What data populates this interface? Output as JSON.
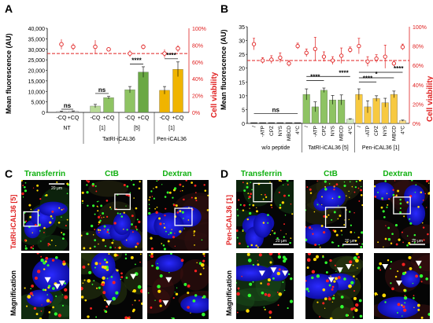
{
  "panel_labels": {
    "a": "A",
    "b": "B",
    "c": "C",
    "d": "D"
  },
  "colors": {
    "red": "#e02020",
    "green_light": "#b8db97",
    "green_mid": "#8ec363",
    "green_dark": "#6aa844",
    "orange": "#f0b400",
    "orange_light": "#f7c940",
    "gray": "#bfbfbf",
    "green_label": "#10b010",
    "red_label": "#e02020"
  },
  "chart_data": [
    {
      "id": "A",
      "type": "bar",
      "ylabel": "Mean fluorescence (AU)",
      "y2label": "Cell viability",
      "ylim": [
        0,
        40000
      ],
      "y2lim": [
        0,
        100
      ],
      "yticks": [
        "0",
        "5,000",
        "10,000",
        "15,000",
        "20,000",
        "25,000",
        "30,000",
        "35,000",
        "40,000"
      ],
      "y2ticks": [
        "0%",
        "20%",
        "40%",
        "60%",
        "80%",
        "100%"
      ],
      "categories": [
        "-CQ",
        "+CQ",
        "-CQ",
        "+CQ",
        "-CQ",
        "+CQ",
        "-CQ",
        "+CQ"
      ],
      "values": [
        400,
        500,
        3000,
        7000,
        10800,
        19200,
        10500,
        20500
      ],
      "errors": [
        200,
        200,
        800,
        600,
        1500,
        2500,
        1800,
        3500
      ],
      "viability": [
        81,
        78,
        78,
        75,
        70,
        78,
        70,
        76
      ],
      "viability_err": [
        6,
        4,
        8,
        0,
        4,
        3,
        5,
        4
      ],
      "reference_line": 70,
      "groups": [
        {
          "label": "NT",
          "conc": ""
        },
        {
          "label": "TatRI-iCAL36",
          "conc": "[1]"
        },
        {
          "label": "",
          "conc": "[5]"
        },
        {
          "label": "Pen-iCAL36",
          "conc": "[1]"
        }
      ],
      "annotations": [
        "ns",
        "ns",
        "****",
        "****"
      ]
    },
    {
      "id": "B",
      "type": "bar",
      "ylabel": "Mean fluorescence (AU)",
      "y2label": "Cell viability",
      "ylim": [
        0,
        35
      ],
      "y2lim": [
        0,
        100
      ],
      "yticks": [
        "0",
        "5",
        "10",
        "15",
        "20",
        "25",
        "30",
        "35"
      ],
      "y2ticks": [
        "0%",
        "20%",
        "40%",
        "60%",
        "80%",
        "100%"
      ],
      "categories": [
        "/",
        "-ATP",
        "CPZ",
        "NYS",
        "MBCD",
        "4°C",
        "/",
        "-ATP",
        "CPZ",
        "NYS",
        "MBCD",
        "4°C",
        "/",
        "-ATP",
        "CPZ",
        "NYS",
        "MBCD",
        "4°C"
      ],
      "values": [
        0.2,
        0.2,
        0.2,
        0.2,
        0.2,
        0.2,
        10.5,
        6,
        12,
        8.5,
        8.5,
        1.5,
        10.5,
        6,
        9,
        7.5,
        10.5,
        1
      ],
      "errors": [
        0.1,
        0.1,
        0.1,
        0.1,
        0.1,
        0.1,
        2,
        1.8,
        0.8,
        1.6,
        1.8,
        0.2,
        2,
        2.2,
        1,
        1.6,
        1.2,
        0.2
      ],
      "viability": [
        82,
        65,
        66,
        68,
        62,
        80,
        73,
        77,
        69,
        65,
        70,
        76,
        80,
        64,
        67,
        69,
        62,
        79
      ],
      "viability_err": [
        6,
        3,
        4,
        5,
        3,
        3,
        4,
        12,
        5,
        4,
        8,
        3,
        8,
        5,
        4,
        12,
        3,
        3
      ],
      "reference_line": 65,
      "groups": [
        "w/o peptide",
        "TatRI-iCAL36 [5]",
        "Pen-iCAL36 [1]"
      ],
      "annotations": [
        "ns",
        "****",
        "****",
        "****",
        "*",
        "****"
      ]
    }
  ],
  "micro": {
    "c": {
      "rowlabel": "TatRI-iCAL36 [5]",
      "maglabel": "Magnification",
      "cols": [
        "Transferrin",
        "CtB",
        "Dextran"
      ],
      "scalebar": "20 μm"
    },
    "d": {
      "rowlabel": "Pen-iCAL36 [1]",
      "maglabel": "Magnification",
      "cols": [
        "Transferrin",
        "CtB",
        "Dextran"
      ],
      "scalebars": [
        "20 μm",
        "20 μm",
        "20 μm"
      ]
    }
  }
}
